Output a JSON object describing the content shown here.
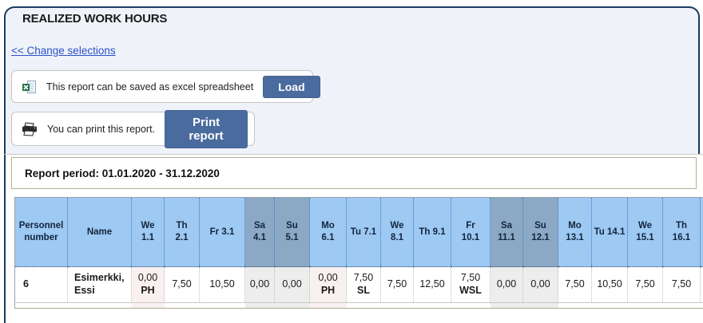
{
  "page_title": "REALIZED WORK HOURS",
  "change_selections_link": "<< Change selections",
  "excel_box": {
    "icon": "excel-spreadsheet-icon",
    "text": "This report can be saved as excel spreadsheet",
    "button_label": "Load"
  },
  "print_box": {
    "icon": "printer-icon",
    "text": "You can print this report.",
    "button_label": "Print report"
  },
  "report_period": "Report period: 01.01.2020 - 31.12.2020",
  "colors": {
    "panel_border": "#1c3a5e",
    "band_background": "#eff3f9",
    "button": "#4a6b9d",
    "header_day": "#9dc9f3",
    "header_weekend": "#8ba9c5",
    "cell_weekend": "#ededed",
    "cell_holiday": "#f9f0f0",
    "period_box_border": "#b6b194",
    "link": "#2a52c8"
  },
  "table": {
    "columns": [
      {
        "label": "Personnel\nnumber",
        "weekend": false
      },
      {
        "label": "Name",
        "weekend": false
      },
      {
        "label": "We\n1.1",
        "weekend": false
      },
      {
        "label": "Th\n2.1",
        "weekend": false
      },
      {
        "label": "Fr 3.1",
        "weekend": false
      },
      {
        "label": "Sa\n4.1",
        "weekend": true
      },
      {
        "label": "Su\n5.1",
        "weekend": true
      },
      {
        "label": "Mo\n6.1",
        "weekend": false
      },
      {
        "label": "Tu 7.1",
        "weekend": false
      },
      {
        "label": "We\n8.1",
        "weekend": false
      },
      {
        "label": "Th 9.1",
        "weekend": false
      },
      {
        "label": "Fr\n10.1",
        "weekend": false
      },
      {
        "label": "Sa\n11.1",
        "weekend": true
      },
      {
        "label": "Su\n12.1",
        "weekend": true
      },
      {
        "label": "Mo\n13.1",
        "weekend": false
      },
      {
        "label": "Tu 14.1",
        "weekend": false
      },
      {
        "label": "We\n15.1",
        "weekend": false
      },
      {
        "label": "Th\n16.1",
        "weekend": false
      },
      {
        "label": "",
        "weekend": false
      }
    ],
    "rows": [
      {
        "personnel_number": "6",
        "name": "Esimerkki, Essi",
        "cells": [
          {
            "value": "0,00",
            "code": "PH",
            "highlight": "holiday"
          },
          {
            "value": "7,50",
            "code": "",
            "highlight": ""
          },
          {
            "value": "10,50",
            "code": "",
            "highlight": ""
          },
          {
            "value": "0,00",
            "code": "",
            "highlight": "weekend"
          },
          {
            "value": "0,00",
            "code": "",
            "highlight": "weekend"
          },
          {
            "value": "0,00",
            "code": "PH",
            "highlight": "holiday"
          },
          {
            "value": "7,50",
            "code": "SL",
            "highlight": ""
          },
          {
            "value": "7,50",
            "code": "",
            "highlight": ""
          },
          {
            "value": "12,50",
            "code": "",
            "highlight": ""
          },
          {
            "value": "7,50",
            "code": "WSL",
            "highlight": ""
          },
          {
            "value": "0,00",
            "code": "",
            "highlight": "weekend"
          },
          {
            "value": "0,00",
            "code": "",
            "highlight": "weekend"
          },
          {
            "value": "7,50",
            "code": "",
            "highlight": ""
          },
          {
            "value": "10,50",
            "code": "",
            "highlight": ""
          },
          {
            "value": "7,50",
            "code": "",
            "highlight": ""
          },
          {
            "value": "7,50",
            "code": "",
            "highlight": ""
          },
          {
            "value": "",
            "code": "",
            "highlight": ""
          }
        ]
      }
    ]
  }
}
